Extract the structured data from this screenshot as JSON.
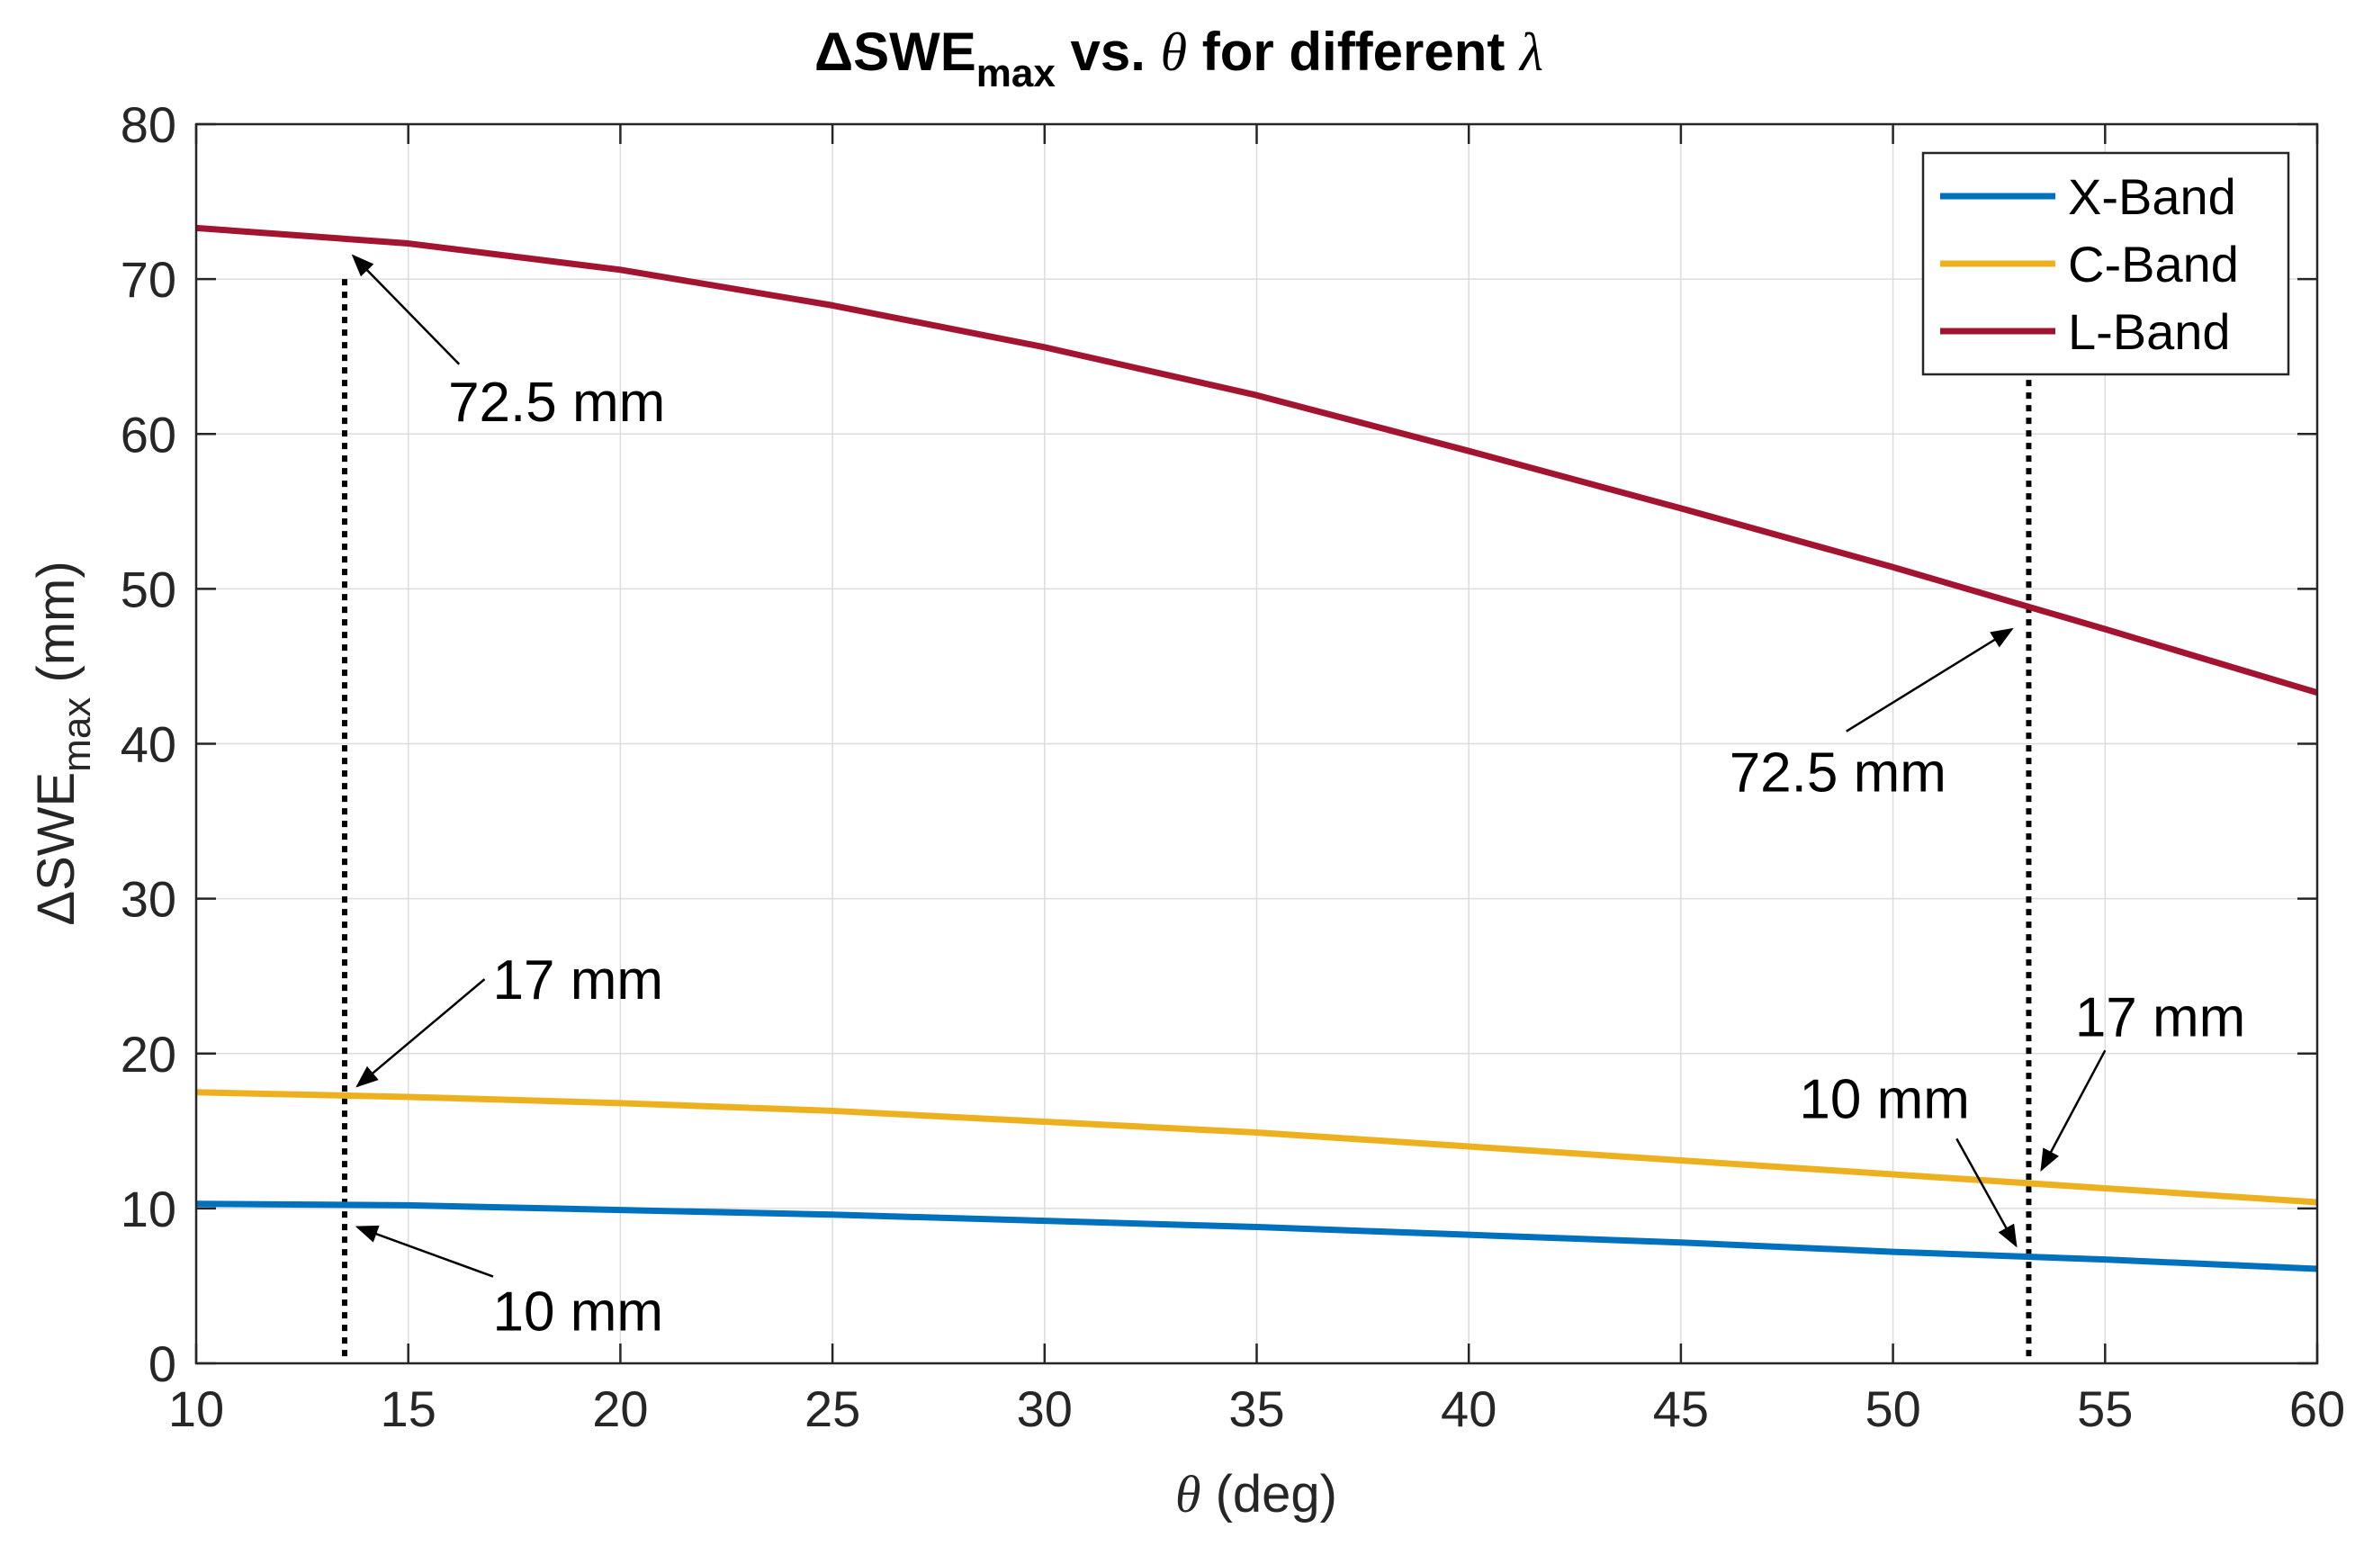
{
  "chart_data": {
    "type": "line",
    "title": {
      "prefix": "ΔSWE",
      "subscript": "max",
      "mid": " vs. ",
      "theta": "θ",
      "post": " for different ",
      "lambda": "λ"
    },
    "xlabel": {
      "symbol": "θ",
      "text": " (deg)"
    },
    "ylabel": {
      "prefix": "ΔSWE",
      "subscript": "max",
      "suffix": "  (mm)"
    },
    "xlim": [
      10,
      60
    ],
    "ylim": [
      0,
      80
    ],
    "xticks": [
      10,
      15,
      20,
      25,
      30,
      35,
      40,
      45,
      50,
      55,
      60
    ],
    "yticks": [
      0,
      10,
      20,
      30,
      40,
      50,
      60,
      70,
      80
    ],
    "grid": true,
    "legend_position": "top-right",
    "x": [
      10,
      15,
      20,
      25,
      30,
      35,
      40,
      45,
      50,
      55,
      60
    ],
    "series": [
      {
        "name": "X-Band",
        "color": "#0072BD",
        "values": [
          10.3,
          10.2,
          9.9,
          9.6,
          9.2,
          8.8,
          8.3,
          7.8,
          7.2,
          6.7,
          6.1
        ]
      },
      {
        "name": "C-Band",
        "color": "#EDB120",
        "values": [
          17.5,
          17.2,
          16.8,
          16.3,
          15.6,
          14.9,
          14.0,
          13.1,
          12.2,
          11.3,
          10.4
        ]
      },
      {
        "name": "L-Band",
        "color": "#A2142F",
        "values": [
          73.3,
          72.3,
          70.6,
          68.3,
          65.6,
          62.5,
          58.9,
          55.2,
          51.4,
          47.4,
          43.3
        ]
      }
    ],
    "markers": [
      13.5,
      53.2
    ],
    "annotations": [
      {
        "text": "72.5 mm",
        "label": [
          18.5,
          62.1
        ],
        "tail": [
          16.2,
          64.5
        ],
        "head": [
          13.7,
          71.5
        ]
      },
      {
        "text": "17 mm",
        "label": [
          19.0,
          24.8
        ],
        "tail": [
          16.8,
          24.8
        ],
        "head": [
          13.8,
          17.9
        ]
      },
      {
        "text": "10 mm",
        "label": [
          19.0,
          3.4
        ],
        "tail": [
          17.0,
          5.6
        ],
        "head": [
          13.8,
          8.8
        ]
      },
      {
        "text": "72.5 mm",
        "label": [
          48.7,
          38.2
        ],
        "tail": [
          48.9,
          40.8
        ],
        "head": [
          52.8,
          47.4
        ]
      },
      {
        "text": "17 mm",
        "label": [
          56.3,
          22.4
        ],
        "tail": [
          55.0,
          20.2
        ],
        "head": [
          53.5,
          12.5
        ]
      },
      {
        "text": "10 mm",
        "label": [
          49.8,
          17.1
        ],
        "tail": [
          51.5,
          14.5
        ],
        "head": [
          52.9,
          7.6
        ]
      }
    ]
  }
}
